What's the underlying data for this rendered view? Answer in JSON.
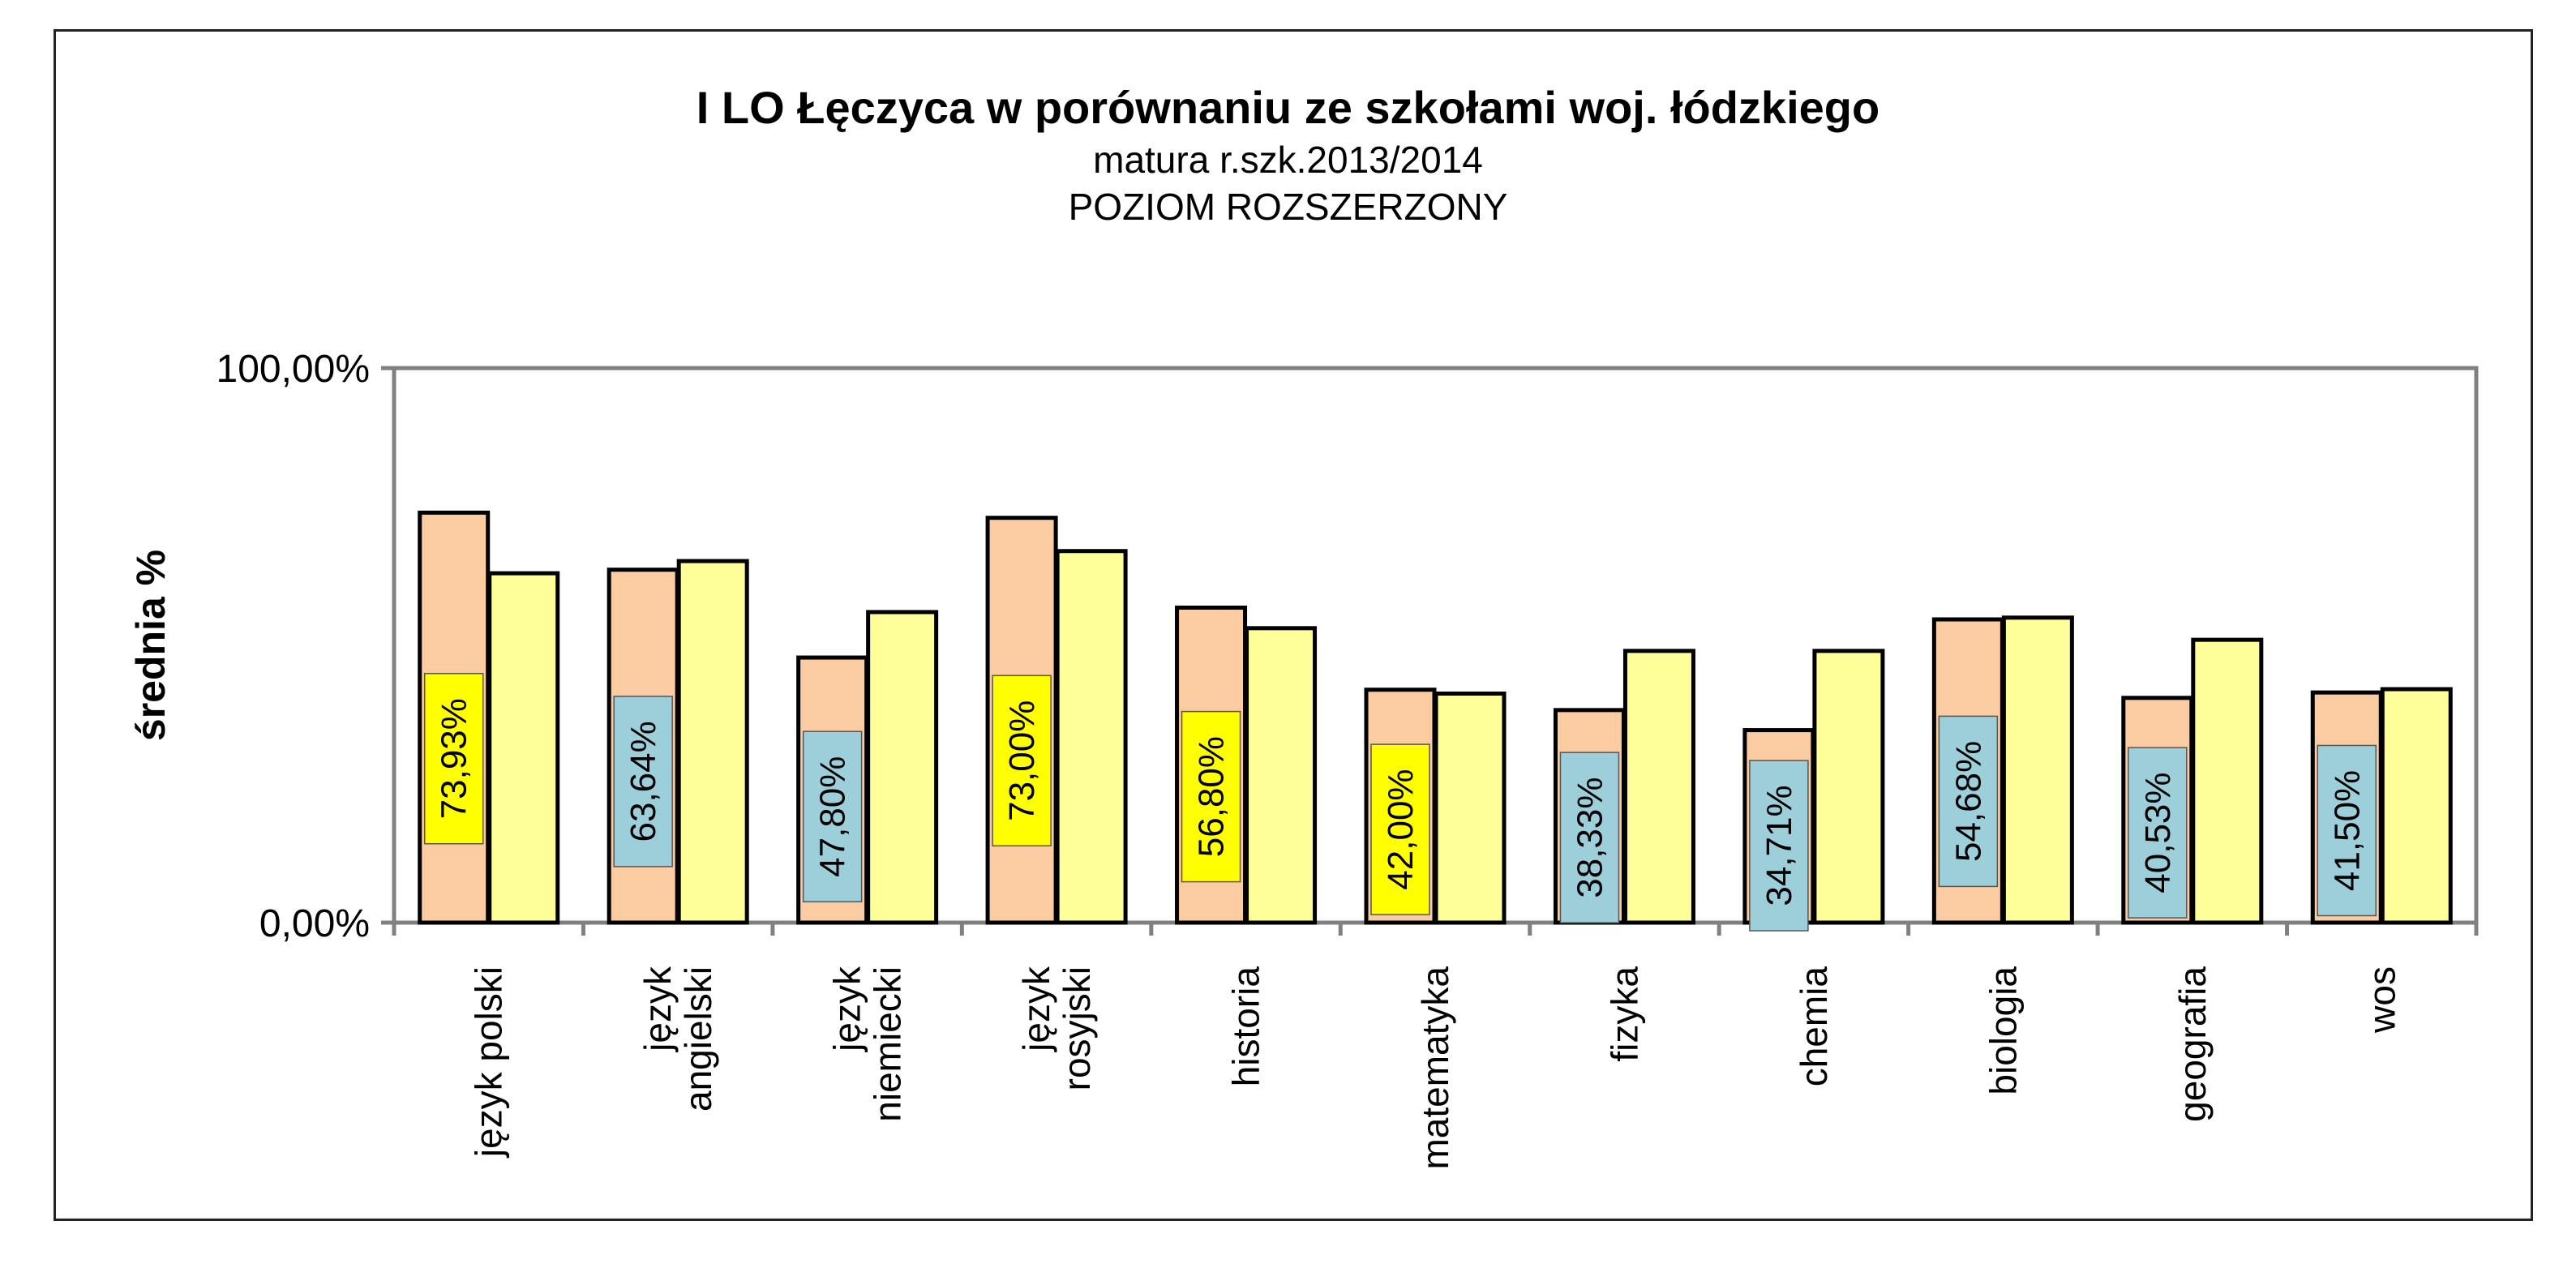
{
  "chart_data": {
    "type": "bar",
    "title": "I LO Łęczyca w porównaniu ze szkołami woj. łódzkiego",
    "subtitle": [
      "matura r.szk.2013/2014",
      "POZIOM ROZSZERZONY"
    ],
    "ylabel": "średnia %",
    "xlabel": "",
    "ylim": [
      0,
      100
    ],
    "yticks": [
      "0,00%",
      "100,00%"
    ],
    "categories": [
      "język polski",
      "język angielski",
      "język niemiecki",
      "język rosyjski",
      "historia",
      "matematyka",
      "fizyka",
      "chemia",
      "biologia",
      "geografia",
      "wos"
    ],
    "series": [
      {
        "color": "#FBCBA1",
        "values": [
          73.93,
          63.64,
          47.8,
          73.0,
          56.8,
          42.0,
          38.33,
          34.71,
          54.68,
          40.53,
          41.5
        ],
        "labels": [
          "73,93%",
          "63,64%",
          "47,80%",
          "73,00%",
          "56,80%",
          "42,00%",
          "38,33%",
          "34,71%",
          "54,68%",
          "40,53%",
          "41,50%"
        ],
        "label_colors": [
          "#FFFF00",
          "#9DCFDA",
          "#9DCFDA",
          "#FFFF00",
          "#FFFF00",
          "#FFFF00",
          "#9DCFDA",
          "#9DCFDA",
          "#9DCFDA",
          "#9DCFDA",
          "#9DCFDA"
        ]
      },
      {
        "color": "#FFFF99",
        "values": [
          63.0,
          65.2,
          56.0,
          67.0,
          53.1,
          41.3,
          49.0,
          49.0,
          55.0,
          51.0,
          42.1
        ]
      }
    ],
    "grid": false,
    "legend": "none"
  }
}
